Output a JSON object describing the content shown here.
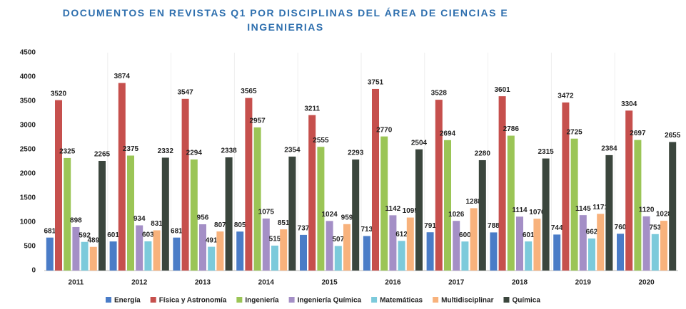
{
  "chart_data": {
    "type": "bar",
    "title": "DOCUMENTOS EN REVISTAS Q1 POR DISCIPLINAS DEL ÁREA DE CIENCIAS E INGENIERIAS",
    "categories": [
      "2011",
      "2012",
      "2013",
      "2014",
      "2015",
      "2016",
      "2017",
      "2018",
      "2019",
      "2020"
    ],
    "series": [
      {
        "name": "Energía",
        "color": "#4a7cc7",
        "values": [
          681,
          601,
          681,
          805,
          737,
          713,
          791,
          788,
          744,
          760
        ]
      },
      {
        "name": "Física y Astronomía",
        "color": "#c6504d",
        "values": [
          3520,
          3874,
          3547,
          3565,
          3211,
          3751,
          3528,
          3601,
          3472,
          3304
        ]
      },
      {
        "name": "Ingeniería",
        "color": "#9bc556",
        "values": [
          2325,
          2375,
          2294,
          2957,
          2555,
          2770,
          2694,
          2786,
          2725,
          2697
        ]
      },
      {
        "name": "Ingeniería Química",
        "color": "#a48fc6",
        "values": [
          898,
          934,
          956,
          1075,
          1024,
          1142,
          1026,
          1114,
          1145,
          1120
        ]
      },
      {
        "name": "Matemáticas",
        "color": "#7ccadb",
        "values": [
          592,
          603,
          491,
          515,
          507,
          612,
          600,
          601,
          662,
          753
        ]
      },
      {
        "name": "Multidisciplinar",
        "color": "#f8b27c",
        "values": [
          489,
          831,
          807,
          851,
          959,
          1095,
          1288,
          1070,
          1171,
          1028
        ]
      },
      {
        "name": "Química",
        "color": "#3b463d",
        "values": [
          2265,
          2332,
          2338,
          2354,
          2293,
          2504,
          2280,
          2315,
          2384,
          2655
        ]
      }
    ],
    "ylim": [
      0,
      4500
    ],
    "yticks": [
      0,
      500,
      1000,
      1500,
      2000,
      2500,
      3000,
      3500,
      4000,
      4500
    ],
    "grid": false,
    "legend": "bottom"
  }
}
